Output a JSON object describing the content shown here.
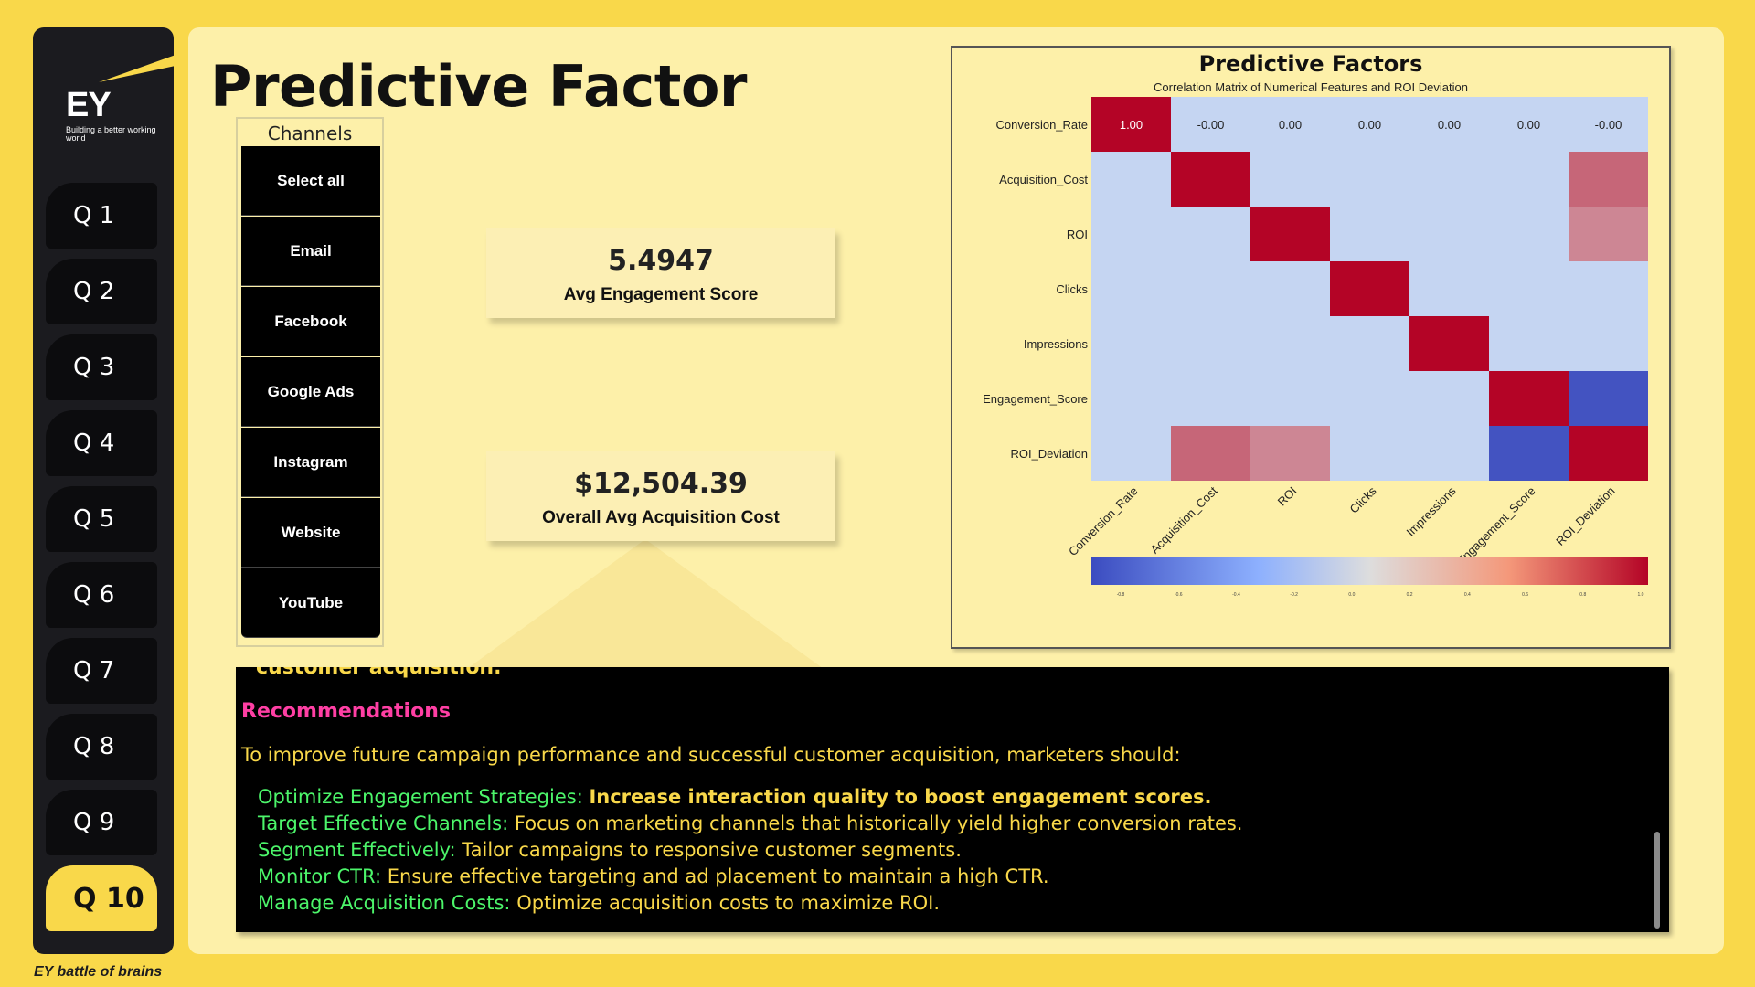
{
  "brand": {
    "logo_text": "EY",
    "tagline": "Building a better working world",
    "footer": "EY battle of brains",
    "accent_color": "#f9d84a"
  },
  "nav": {
    "items": [
      "Q 1",
      "Q 2",
      "Q 3",
      "Q 4",
      "Q 5",
      "Q 6",
      "Q 7",
      "Q 8",
      "Q 9",
      "Q 10"
    ],
    "active": "Q 10"
  },
  "page": {
    "title": "Predictive Factor"
  },
  "slicer": {
    "title": "Channels",
    "items": [
      "Select all",
      "Email",
      "Facebook",
      "Google Ads",
      "Instagram",
      "Website",
      "YouTube"
    ]
  },
  "kpis": [
    {
      "value": "5.4947",
      "label": "Avg Engagement Score"
    },
    {
      "value": "$12,504.39",
      "label": "Overall Avg Acquisition Cost"
    }
  ],
  "chart_data": {
    "type": "heatmap",
    "title": "Predictive Factors",
    "subtitle": "Correlation Matrix of Numerical Features and ROI Deviation",
    "rows": [
      "Conversion_Rate",
      "Acquisition_Cost",
      "ROI",
      "Clicks",
      "Impressions",
      "Engagement_Score",
      "ROI_Deviation"
    ],
    "cols": [
      "Conversion_Rate",
      "Acquisition_Cost",
      "ROI",
      "Clicks",
      "Impressions",
      "Engagement_Score",
      "ROI_Deviation"
    ],
    "annotations_row0": [
      "1.00",
      "-0.00",
      "0.00",
      "0.00",
      "0.00",
      "0.00",
      "-0.00"
    ],
    "values": [
      [
        1.0,
        0.0,
        0.0,
        0.0,
        0.0,
        0.0,
        0.0
      ],
      [
        0.0,
        1.0,
        0.0,
        0.0,
        0.0,
        0.0,
        0.55
      ],
      [
        0.0,
        0.0,
        1.0,
        0.0,
        0.0,
        0.0,
        0.4
      ],
      [
        0.0,
        0.0,
        0.0,
        1.0,
        0.0,
        0.0,
        0.0
      ],
      [
        0.0,
        0.0,
        0.0,
        0.0,
        1.0,
        0.0,
        0.0
      ],
      [
        0.0,
        0.0,
        0.0,
        0.0,
        0.0,
        1.0,
        -0.95
      ],
      [
        0.0,
        0.55,
        0.4,
        0.0,
        0.0,
        -0.95,
        1.0
      ]
    ],
    "colorscale": {
      "min": -1.0,
      "max": 1.0,
      "low": "#3b4cc0",
      "mid": "#dddddd",
      "high": "#b40426"
    },
    "colorbar_ticks": [
      "-0.8",
      "-0.6",
      "-0.4",
      "-0.2",
      "0.0",
      "0.2",
      "0.4",
      "0.6",
      "0.8",
      "1.0"
    ],
    "legend": "bottom"
  },
  "notes": {
    "cut_text": "customer acquisition.",
    "heading": "Recommendations",
    "intro": "To improve future campaign performance and successful customer acquisition, marketers should:",
    "items": [
      {
        "key": "Optimize Engagement Strategies:",
        "text": "Increase interaction quality to boost engagement scores.",
        "bold": true
      },
      {
        "key": "Target Effective Channels:",
        "text": "Focus on marketing channels that historically yield higher conversion rates.",
        "bold": false
      },
      {
        "key": "Segment Effectively:",
        "text": "Tailor campaigns to responsive customer segments.",
        "bold": false
      },
      {
        "key": "Monitor CTR:",
        "text": "Ensure effective targeting and ad placement to maintain a high CTR.",
        "bold": false
      },
      {
        "key": "Manage Acquisition Costs:",
        "text": "Optimize acquisition costs to maximize ROI.",
        "bold": false
      }
    ]
  }
}
